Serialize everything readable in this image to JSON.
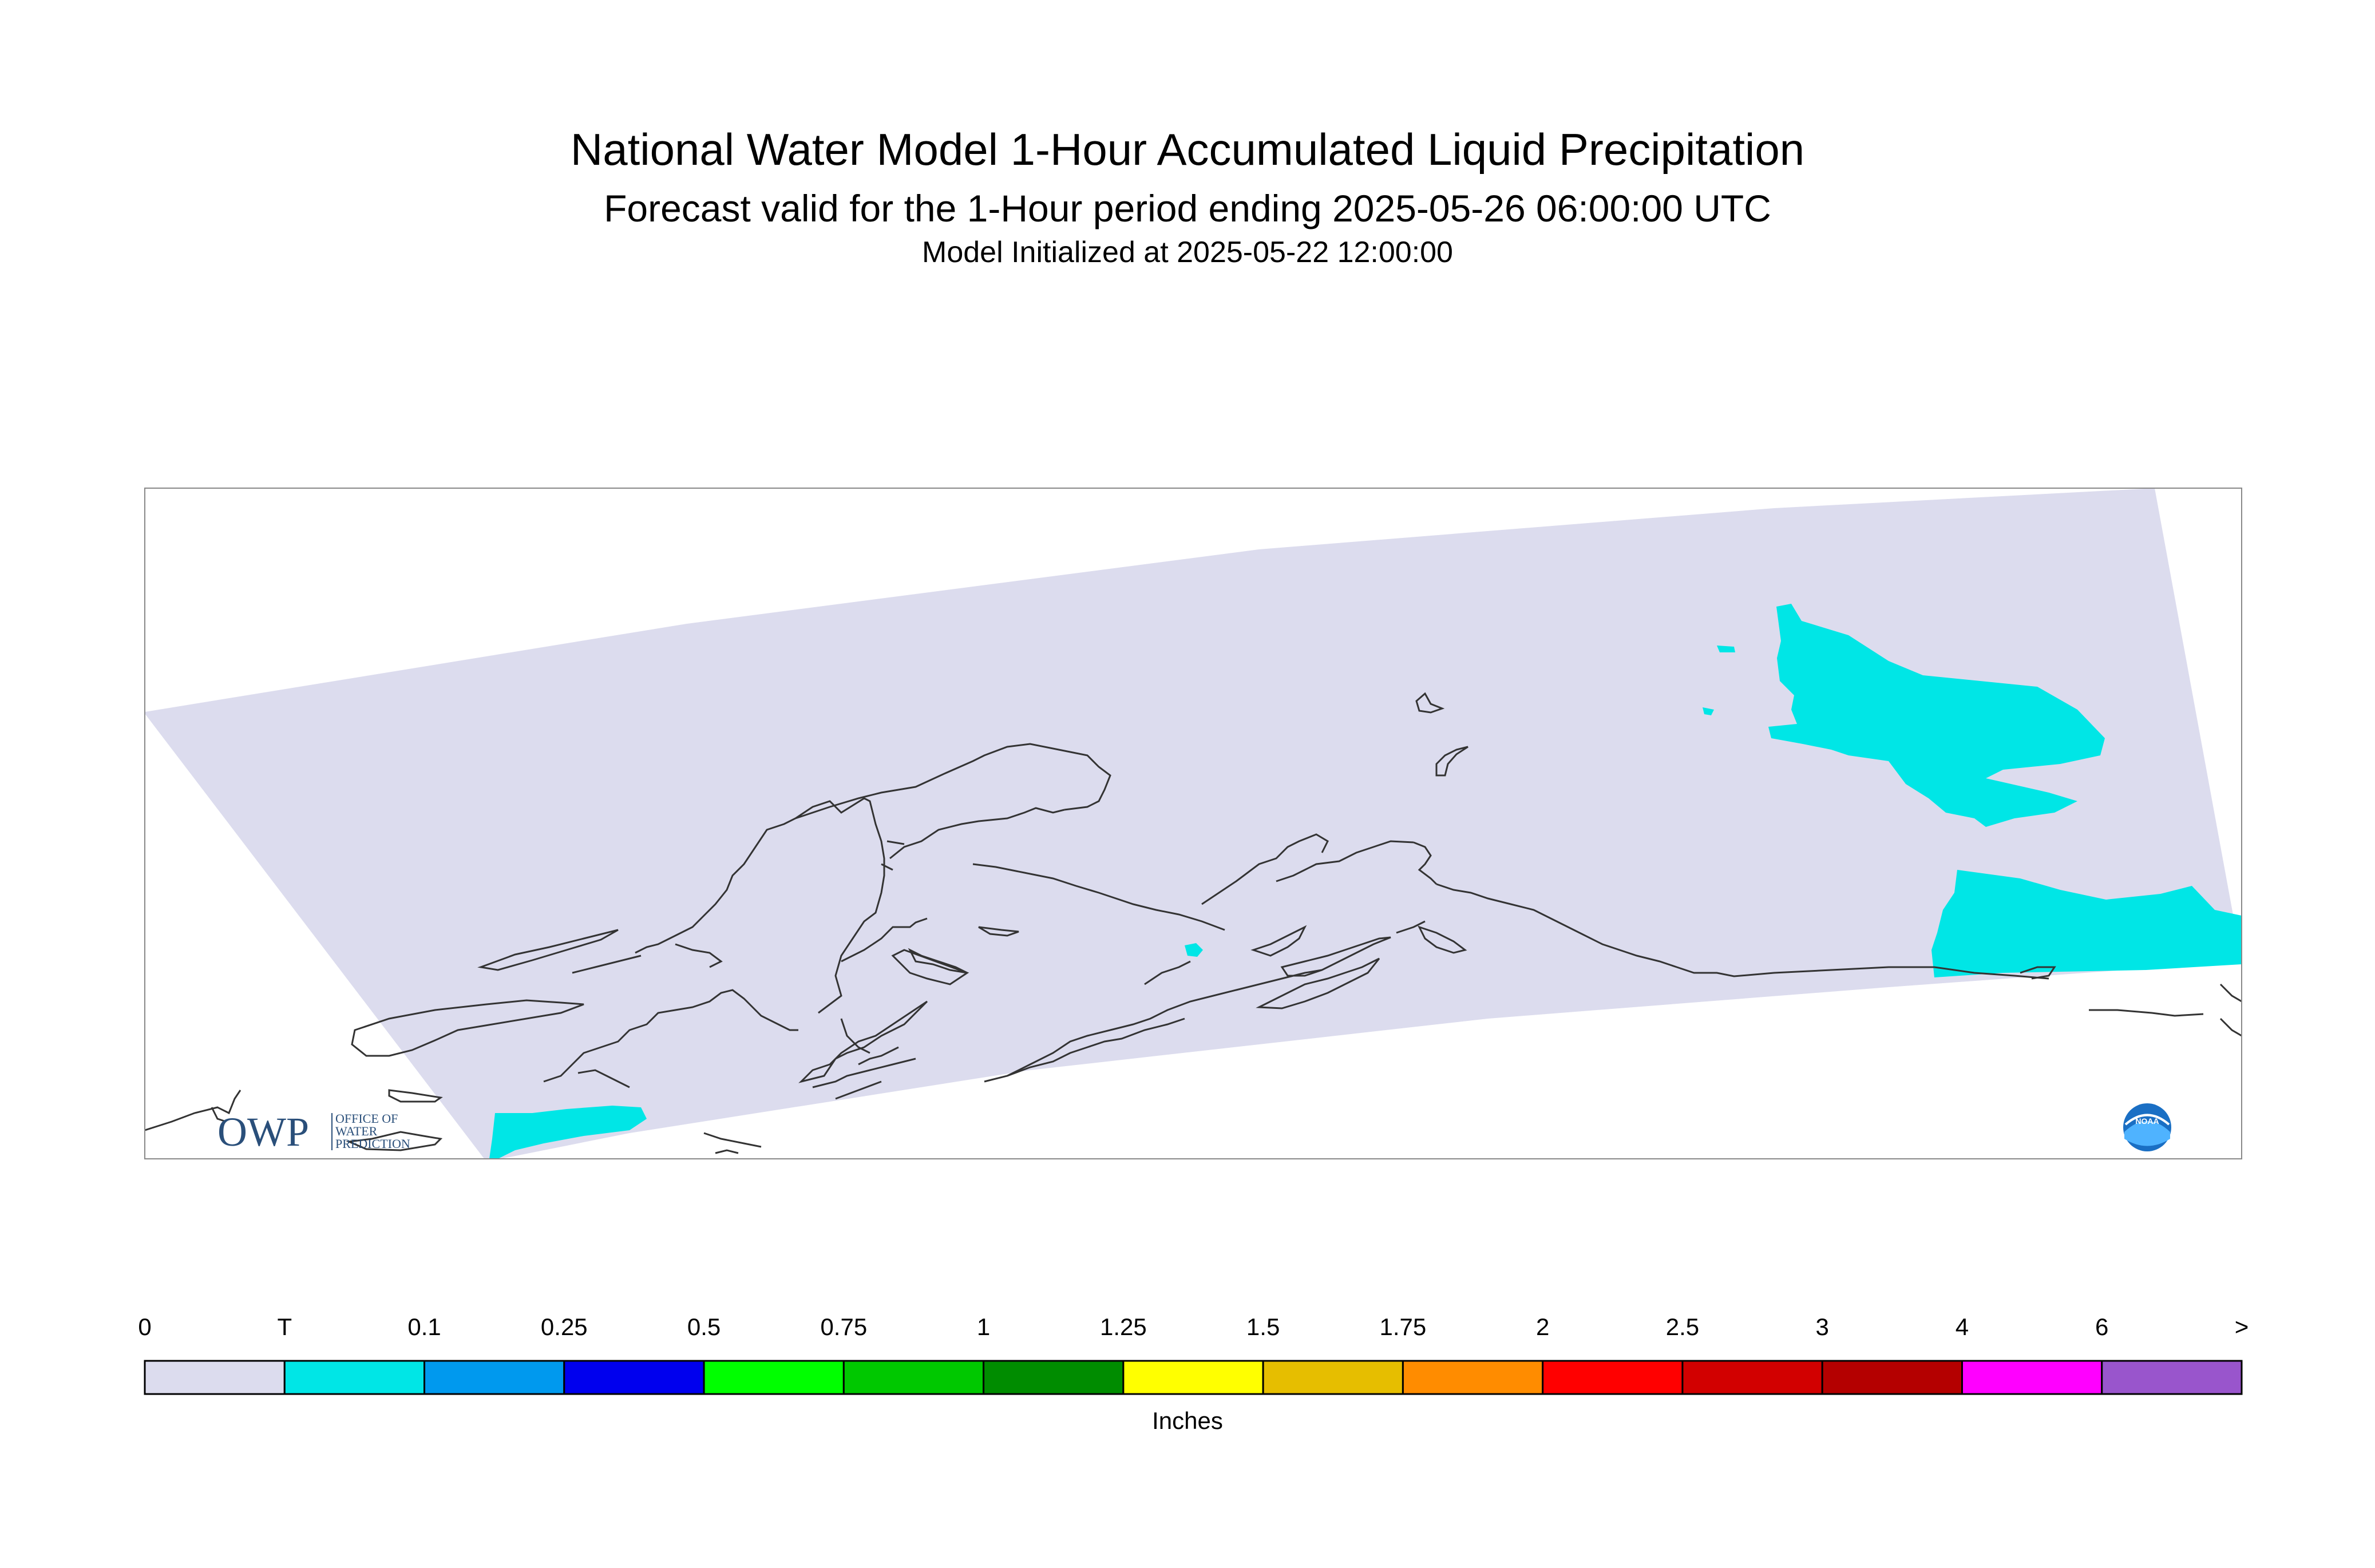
{
  "header": {
    "title": "National Water Model 1-Hour Accumulated Liquid Precipitation",
    "subtitle": "Forecast valid for the 1-Hour period ending 2025-05-26 06:00:00 UTC",
    "init": "Model Initialized at 2025-05-22 12:00:00"
  },
  "logos": {
    "owp_main": "OWP",
    "owp_lines": [
      "OFFICE OF",
      "WATER",
      "PREDICTION"
    ],
    "noaa": "NOAA"
  },
  "colors": {
    "domain": "#dcdcee",
    "trace": "#00e6e6",
    "coast": "#333333",
    "frame": "#888888"
  },
  "legend": {
    "unit": "Inches",
    "labels": [
      "0",
      "T",
      "0.1",
      "0.25",
      "0.5",
      "0.75",
      "1",
      "1.25",
      "1.5",
      "1.75",
      "2",
      "2.5",
      "3",
      "4",
      "6",
      ">"
    ],
    "colors": [
      "#dcdcee",
      "#00e6e6",
      "#0099ee",
      "#0000ee",
      "#00ff00",
      "#00c800",
      "#008c00",
      "#ffff00",
      "#e6be00",
      "#ff8c00",
      "#ff0000",
      "#d20000",
      "#b40000",
      "#ff00ff",
      "#9955cc"
    ]
  }
}
